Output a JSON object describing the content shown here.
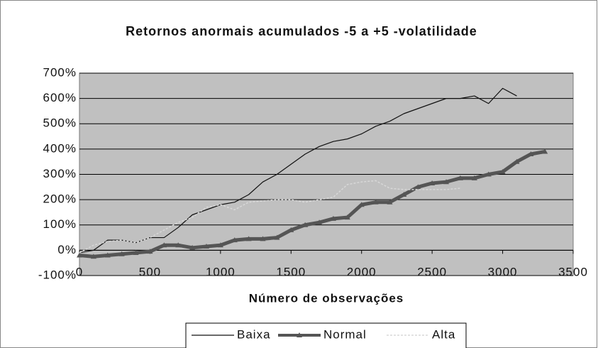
{
  "chart_data": {
    "type": "line",
    "title": "Retornos anormais acumulados -5 a +5 -volatilidade",
    "x_label": "Número de observações",
    "x": [
      0,
      100,
      200,
      300,
      400,
      500,
      600,
      700,
      800,
      900,
      1000,
      1100,
      1200,
      1300,
      1400,
      1500,
      1600,
      1700,
      1800,
      1900,
      2000,
      2100,
      2200,
      2300,
      2400,
      2500,
      2600,
      2700,
      2800,
      2900,
      3000,
      3100,
      3200,
      3300
    ],
    "series": [
      {
        "name": "Baixa",
        "color": "#111111",
        "width": 1.2,
        "dash": "none",
        "marker": false,
        "values": [
          -10,
          0,
          40,
          40,
          30,
          50,
          50,
          90,
          140,
          160,
          180,
          190,
          220,
          270,
          300,
          340,
          380,
          410,
          430,
          440,
          460,
          490,
          510,
          540,
          560,
          580,
          600,
          600,
          610,
          580,
          640,
          610,
          null,
          null
        ]
      },
      {
        "name": "Normal",
        "color": "#555555",
        "width": 5,
        "dash": "none",
        "marker": true,
        "values": [
          -20,
          -25,
          -20,
          -15,
          -10,
          -5,
          20,
          20,
          10,
          15,
          20,
          40,
          45,
          45,
          50,
          80,
          100,
          110,
          125,
          130,
          180,
          190,
          190,
          220,
          250,
          265,
          270,
          285,
          285,
          300,
          310,
          350,
          380,
          390
        ]
      },
      {
        "name": "Alta",
        "color": "#d8d8d8",
        "width": 1.5,
        "dash": "3 2",
        "marker": false,
        "values": [
          -10,
          20,
          35,
          40,
          30,
          50,
          80,
          110,
          130,
          170,
          180,
          160,
          190,
          195,
          200,
          200,
          190,
          200,
          210,
          260,
          270,
          275,
          245,
          240,
          240,
          240,
          240,
          245,
          null,
          null,
          null,
          null,
          null,
          null
        ]
      }
    ],
    "xlim": [
      0,
      3500
    ],
    "xticks": [
      0,
      500,
      1000,
      1500,
      2000,
      2500,
      3000,
      3500
    ],
    "ylim": [
      -100,
      700
    ],
    "yticks": [
      {
        "value": -100,
        "label": "-100%"
      },
      {
        "value": 0,
        "label": "0%"
      },
      {
        "value": 100,
        "label": "100%"
      },
      {
        "value": 200,
        "label": "200%"
      },
      {
        "value": 300,
        "label": "300%"
      },
      {
        "value": 400,
        "label": "400%"
      },
      {
        "value": 500,
        "label": "500%"
      },
      {
        "value": 600,
        "label": "600%"
      },
      {
        "value": 700,
        "label": "700%"
      }
    ],
    "grid": true,
    "plot_background": "#c0c0c0",
    "legend": "bottom"
  }
}
